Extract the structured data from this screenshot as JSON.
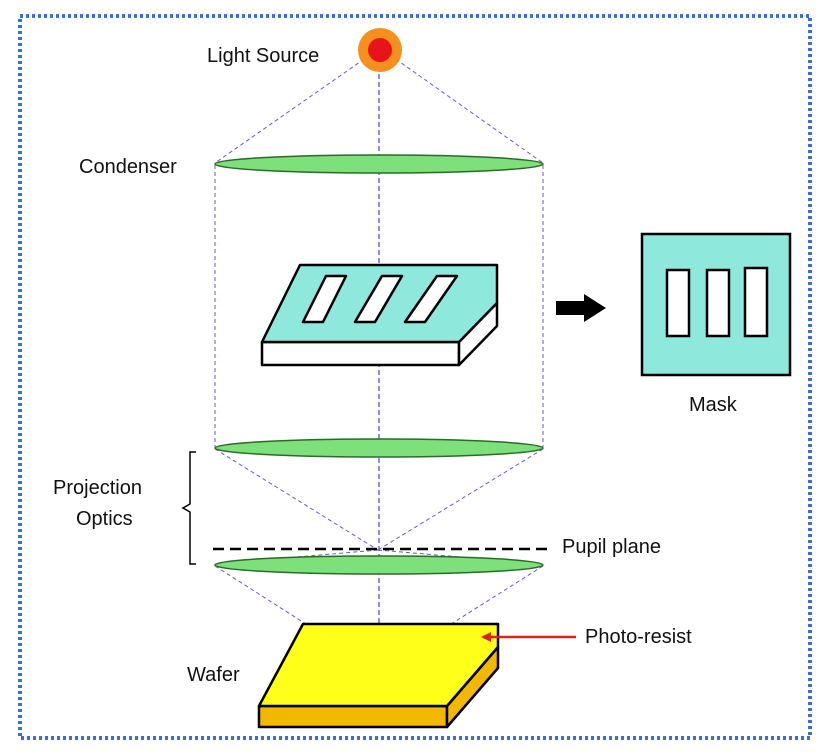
{
  "labels": {
    "light_source": "Light Source",
    "condenser": "Condenser",
    "mask": "Mask",
    "projection_optics_line1": "Projection",
    "projection_optics_line2": "Optics",
    "pupil_plane": "Pupil plane",
    "photo_resist": "Photo-resist",
    "wafer": "Wafer"
  },
  "colors": {
    "frame_border": "#3a6fd8",
    "light_outer": "#f5901e",
    "light_inner": "#e8141b",
    "lens_fill": "#7ee07a",
    "mask_fill": "#8fe8dc",
    "wafer_top": "#ffff1a",
    "wafer_side": "#f2b800",
    "ray": "#5f4bc8",
    "resist_arrow": "#e0201a"
  }
}
